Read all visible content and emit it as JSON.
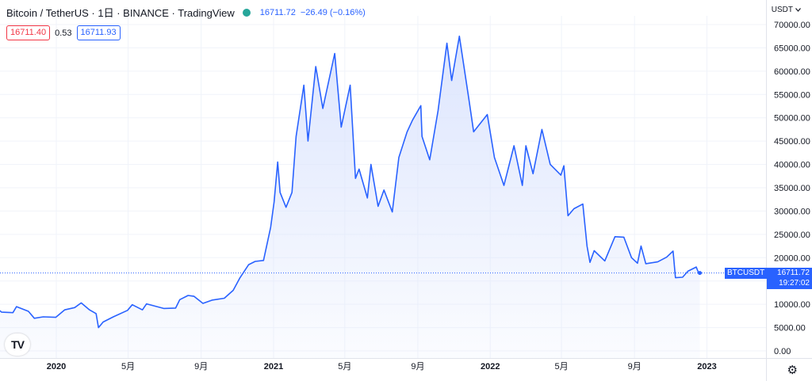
{
  "header": {
    "symbol": "Bitcoin / TetherUS · 1日 · BINANCE · TradingView",
    "last": "16711.72",
    "change": "−26.49 (−0.16%)",
    "status_color": "#26a69a"
  },
  "quote": {
    "bid": "16711.40",
    "spread": "0.53",
    "ask": "16711.93"
  },
  "axis": {
    "unit_label": "USDT",
    "unit_icon": "chevron-down-icon"
  },
  "price_tag": {
    "symbol": "BTCUSDT",
    "price": "16711.72",
    "countdown": "19:27:02"
  },
  "colors": {
    "line": "#2962ff",
    "fill_top": "#dbe4fd",
    "bid": "#f23645",
    "ask": "#2962ff"
  },
  "chart_data": {
    "type": "area",
    "ylim": [
      0,
      70000
    ],
    "y_ticks": [
      "0.00",
      "5000.00",
      "10000.00",
      "15000.00",
      "20000.00",
      "25000.00",
      "30000.00",
      "35000.00",
      "40000.00",
      "45000.00",
      "50000.00",
      "55000.00",
      "60000.00",
      "65000.00",
      "70000.00"
    ],
    "x_ticks": [
      {
        "date": "2020-01-01",
        "label": "2020"
      },
      {
        "date": "2020-05-01",
        "label": "5月"
      },
      {
        "date": "2020-09-01",
        "label": "9月"
      },
      {
        "date": "2021-01-01",
        "label": "2021"
      },
      {
        "date": "2021-05-01",
        "label": "5月"
      },
      {
        "date": "2021-09-01",
        "label": "9月"
      },
      {
        "date": "2022-01-01",
        "label": "2022"
      },
      {
        "date": "2022-05-01",
        "label": "5月"
      },
      {
        "date": "2022-09-01",
        "label": "9月"
      },
      {
        "date": "2023-01-01",
        "label": "2023"
      }
    ],
    "series": [
      {
        "points": [
          [
            "2019-09-12",
            10300
          ],
          [
            "2019-10-01",
            8300
          ],
          [
            "2019-10-20",
            8200
          ],
          [
            "2019-10-26",
            9500
          ],
          [
            "2019-11-15",
            8500
          ],
          [
            "2019-11-25",
            7000
          ],
          [
            "2019-12-10",
            7300
          ],
          [
            "2019-12-31",
            7200
          ],
          [
            "2020-01-15",
            8800
          ],
          [
            "2020-02-01",
            9300
          ],
          [
            "2020-02-12",
            10300
          ],
          [
            "2020-02-26",
            8800
          ],
          [
            "2020-03-08",
            8000
          ],
          [
            "2020-03-12",
            5000
          ],
          [
            "2020-03-20",
            6200
          ],
          [
            "2020-04-06",
            7300
          ],
          [
            "2020-04-30",
            8700
          ],
          [
            "2020-05-08",
            9900
          ],
          [
            "2020-05-25",
            8800
          ],
          [
            "2020-06-01",
            10100
          ],
          [
            "2020-06-30",
            9100
          ],
          [
            "2020-07-20",
            9200
          ],
          [
            "2020-07-27",
            11000
          ],
          [
            "2020-08-10",
            11900
          ],
          [
            "2020-08-20",
            11700
          ],
          [
            "2020-09-04",
            10200
          ],
          [
            "2020-09-20",
            10900
          ],
          [
            "2020-10-10",
            11300
          ],
          [
            "2020-10-25",
            13000
          ],
          [
            "2020-11-05",
            15600
          ],
          [
            "2020-11-20",
            18500
          ],
          [
            "2020-12-01",
            19200
          ],
          [
            "2020-12-15",
            19400
          ],
          [
            "2020-12-27",
            26500
          ],
          [
            "2021-01-02",
            32000
          ],
          [
            "2021-01-08",
            40500
          ],
          [
            "2021-01-12",
            34000
          ],
          [
            "2021-01-22",
            30800
          ],
          [
            "2021-02-01",
            34000
          ],
          [
            "2021-02-08",
            46000
          ],
          [
            "2021-02-21",
            57000
          ],
          [
            "2021-02-28",
            45000
          ],
          [
            "2021-03-13",
            61000
          ],
          [
            "2021-03-25",
            52000
          ],
          [
            "2021-04-14",
            63800
          ],
          [
            "2021-04-25",
            48000
          ],
          [
            "2021-05-10",
            57000
          ],
          [
            "2021-05-19",
            37000
          ],
          [
            "2021-05-25",
            39000
          ],
          [
            "2021-06-08",
            32800
          ],
          [
            "2021-06-14",
            40000
          ],
          [
            "2021-06-26",
            31000
          ],
          [
            "2021-07-06",
            34500
          ],
          [
            "2021-07-20",
            29800
          ],
          [
            "2021-07-31",
            41500
          ],
          [
            "2021-08-14",
            47000
          ],
          [
            "2021-08-23",
            49500
          ],
          [
            "2021-09-06",
            52600
          ],
          [
            "2021-09-08",
            46000
          ],
          [
            "2021-09-21",
            41000
          ],
          [
            "2021-10-05",
            51500
          ],
          [
            "2021-10-20",
            66000
          ],
          [
            "2021-10-28",
            58000
          ],
          [
            "2021-11-10",
            67500
          ],
          [
            "2021-11-26",
            54000
          ],
          [
            "2021-12-04",
            47000
          ],
          [
            "2021-12-27",
            50700
          ],
          [
            "2022-01-08",
            41500
          ],
          [
            "2022-01-24",
            35500
          ],
          [
            "2022-02-10",
            44000
          ],
          [
            "2022-02-24",
            35500
          ],
          [
            "2022-03-02",
            44000
          ],
          [
            "2022-03-14",
            38000
          ],
          [
            "2022-03-29",
            47500
          ],
          [
            "2022-04-12",
            40000
          ],
          [
            "2022-04-30",
            37700
          ],
          [
            "2022-05-05",
            39700
          ],
          [
            "2022-05-12",
            29000
          ],
          [
            "2022-05-22",
            30500
          ],
          [
            "2022-06-06",
            31500
          ],
          [
            "2022-06-13",
            22500
          ],
          [
            "2022-06-18",
            19000
          ],
          [
            "2022-06-25",
            21500
          ],
          [
            "2022-07-13",
            19300
          ],
          [
            "2022-07-30",
            24500
          ],
          [
            "2022-08-14",
            24400
          ],
          [
            "2022-08-27",
            20000
          ],
          [
            "2022-09-06",
            18800
          ],
          [
            "2022-09-12",
            22500
          ],
          [
            "2022-09-20",
            18700
          ],
          [
            "2022-10-10",
            19100
          ],
          [
            "2022-10-25",
            20100
          ],
          [
            "2022-11-05",
            21400
          ],
          [
            "2022-11-09",
            15700
          ],
          [
            "2022-11-21",
            15800
          ],
          [
            "2022-11-30",
            17100
          ],
          [
            "2022-12-14",
            18000
          ],
          [
            "2022-12-18",
            16700
          ],
          [
            "2022-12-20",
            16711.72
          ]
        ]
      }
    ]
  }
}
